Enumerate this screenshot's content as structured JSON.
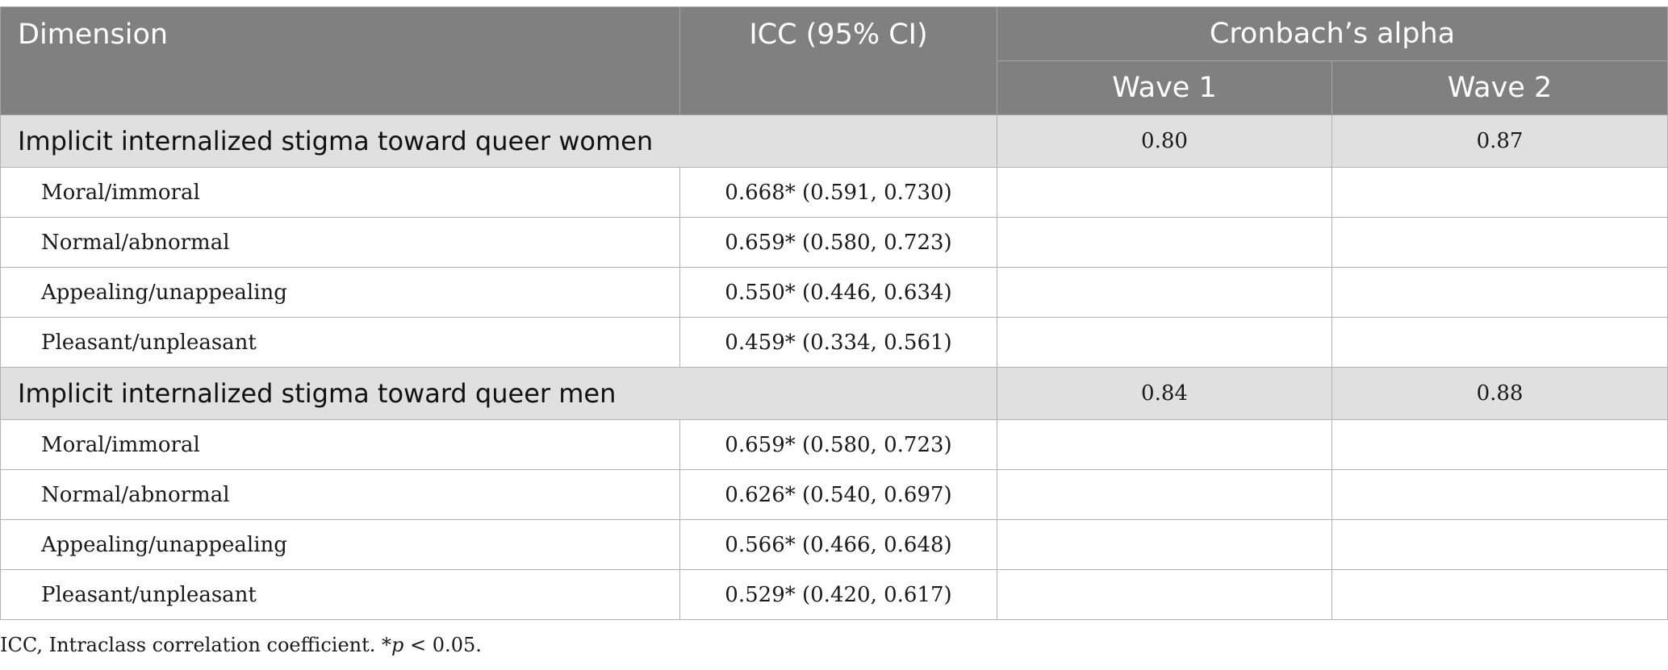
{
  "headers": {
    "dimension": "Dimension",
    "icc": "ICC (95% CI)",
    "alpha": "Cronbach’s alpha",
    "wave1": "Wave 1",
    "wave2": "Wave 2"
  },
  "sections": [
    {
      "title": "Implicit internalized stigma toward queer women",
      "wave1": "0.80",
      "wave2": "0.87",
      "rows": [
        {
          "label": "Moral/immoral",
          "icc": "0.668* (0.591, 0.730)"
        },
        {
          "label": "Normal/abnormal",
          "icc": "0.659* (0.580, 0.723)"
        },
        {
          "label": "Appealing/unappealing",
          "icc": "0.550* (0.446, 0.634)"
        },
        {
          "label": "Pleasant/unpleasant",
          "icc": "0.459* (0.334, 0.561)"
        }
      ]
    },
    {
      "title": "Implicit internalized stigma toward queer men",
      "wave1": "0.84",
      "wave2": "0.88",
      "rows": [
        {
          "label": "Moral/immoral",
          "icc": "0.659* (0.580, 0.723)"
        },
        {
          "label": "Normal/abnormal",
          "icc": "0.626* (0.540, 0.697)"
        },
        {
          "label": "Appealing/unappealing",
          "icc": "0.566* (0.466, 0.648)"
        },
        {
          "label": "Pleasant/unpleasant",
          "icc": "0.529* (0.420, 0.617)"
        }
      ]
    }
  ],
  "footnote": {
    "before": "ICC, Intraclass correlation coefficient. *",
    "p": "p",
    "after": " < 0.05."
  }
}
